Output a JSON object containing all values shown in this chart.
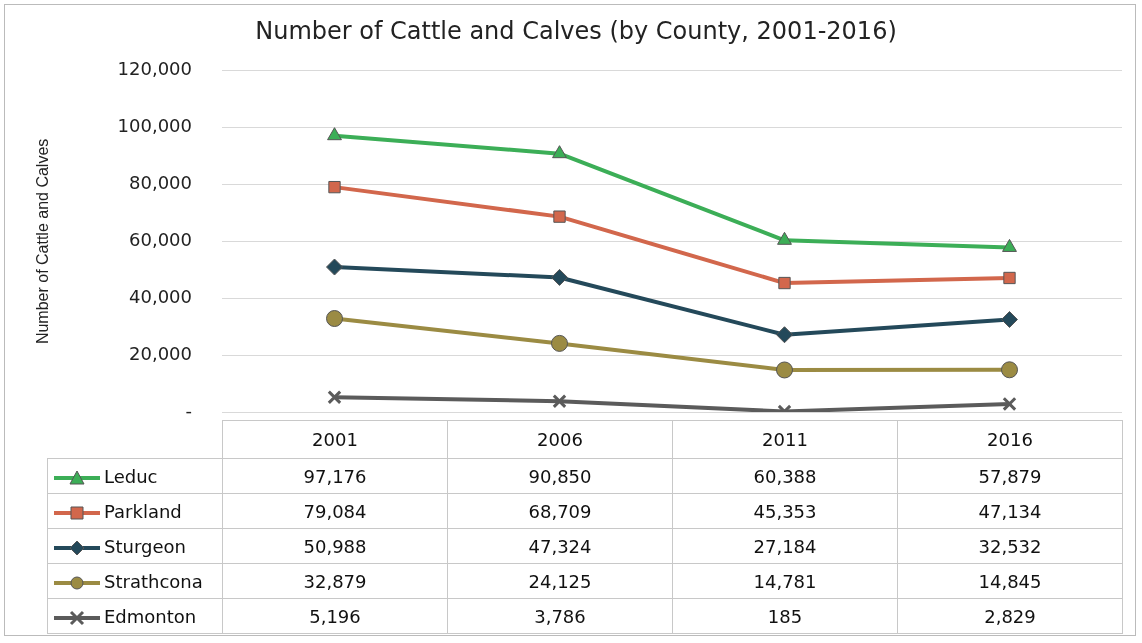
{
  "chart_data": {
    "type": "line",
    "title": "Number of Cattle and Calves (by County, 2001-2016)",
    "ylabel": "Number of Cattle and Calves",
    "categories": [
      "2001",
      "2006",
      "2011",
      "2016"
    ],
    "series": [
      {
        "name": "Leduc",
        "color": "#3cae57",
        "marker": "triangle",
        "values": [
          97176,
          90850,
          60388,
          57879
        ],
        "value_labels": [
          "97,176",
          "90,850",
          "60,388",
          "57,879"
        ]
      },
      {
        "name": "Parkland",
        "color": "#d2674c",
        "marker": "square",
        "values": [
          79084,
          68709,
          45353,
          47134
        ],
        "value_labels": [
          "79,084",
          "68,709",
          "45,353",
          "47,134"
        ]
      },
      {
        "name": "Sturgeon",
        "color": "#24495a",
        "marker": "diamond",
        "values": [
          50988,
          47324,
          27184,
          32532
        ],
        "value_labels": [
          "50,988",
          "47,324",
          "27,184",
          "32,532"
        ]
      },
      {
        "name": "Strathcona",
        "color": "#9b8b43",
        "marker": "circle",
        "values": [
          32879,
          24125,
          14781,
          14845
        ],
        "value_labels": [
          "32,879",
          "24,125",
          "14,781",
          "14,845"
        ]
      },
      {
        "name": "Edmonton",
        "color": "#5b5b5b",
        "marker": "cross",
        "values": [
          5196,
          3786,
          185,
          2829
        ],
        "value_labels": [
          "5,196",
          "3,786",
          "185",
          "2,829"
        ]
      }
    ],
    "ylim": [
      0,
      120000
    ],
    "yticks": [
      {
        "value": 0,
        "label": "-"
      },
      {
        "value": 20000,
        "label": "20,000"
      },
      {
        "value": 40000,
        "label": "40,000"
      },
      {
        "value": 60000,
        "label": "60,000"
      },
      {
        "value": 80000,
        "label": "80,000"
      },
      {
        "value": 100000,
        "label": "100,000"
      },
      {
        "value": 120000,
        "label": "120,000"
      }
    ],
    "grid": "y",
    "legend": "bottom",
    "line_style": "solid"
  }
}
